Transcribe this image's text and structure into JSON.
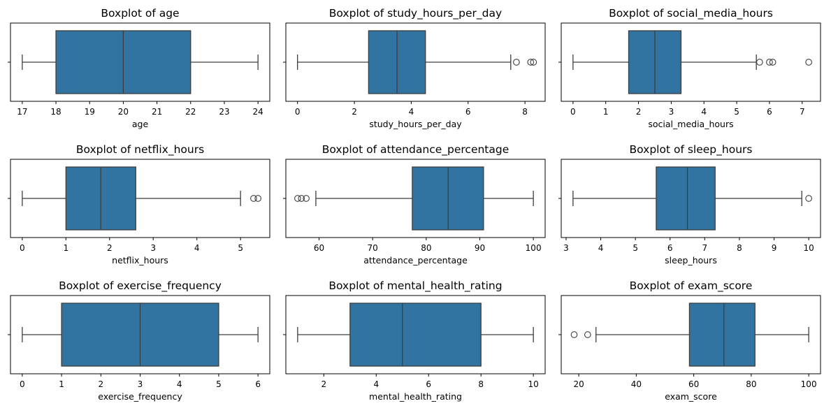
{
  "chart_data": [
    {
      "type": "boxplot",
      "title": "Boxplot of age",
      "xlabel": "age",
      "xlim": [
        16.65,
        24.35
      ],
      "xticks": [
        17,
        18,
        19,
        20,
        21,
        22,
        23,
        24
      ],
      "box": {
        "whisker_low": 17,
        "q1": 18,
        "median": 20,
        "q3": 22,
        "whisker_high": 24
      },
      "outliers": []
    },
    {
      "type": "boxplot",
      "title": "Boxplot of study_hours_per_day",
      "xlabel": "study_hours_per_day",
      "xlim": [
        -0.41,
        8.71
      ],
      "xticks": [
        0,
        2,
        4,
        6,
        8
      ],
      "box": {
        "whisker_low": 0,
        "q1": 2.5,
        "median": 3.5,
        "q3": 4.5,
        "whisker_high": 7.5
      },
      "outliers": [
        7.7,
        8.2,
        8.3
      ]
    },
    {
      "type": "boxplot",
      "title": "Boxplot of social_media_hours",
      "xlabel": "social_media_hours",
      "xlim": [
        -0.36,
        7.56
      ],
      "xticks": [
        0,
        1,
        2,
        3,
        4,
        5,
        6,
        7
      ],
      "box": {
        "whisker_low": 0,
        "q1": 1.7,
        "median": 2.5,
        "q3": 3.3,
        "whisker_high": 5.6
      },
      "outliers": [
        5.7,
        6.0,
        6.1,
        7.2
      ]
    },
    {
      "type": "boxplot",
      "title": "Boxplot of netflix_hours",
      "xlabel": "netflix_hours",
      "xlim": [
        -0.27,
        5.67
      ],
      "xticks": [
        0,
        1,
        2,
        3,
        4,
        5
      ],
      "box": {
        "whisker_low": 0,
        "q1": 1.0,
        "median": 1.8,
        "q3": 2.6,
        "whisker_high": 5.0
      },
      "outliers": [
        5.3,
        5.4
      ]
    },
    {
      "type": "boxplot",
      "title": "Boxplot of attendance_percentage",
      "xlabel": "attendance_percentage",
      "xlim": [
        53.8,
        102.2
      ],
      "xticks": [
        60,
        70,
        80,
        90,
        100
      ],
      "box": {
        "whisker_low": 59.4,
        "q1": 77.4,
        "median": 84.1,
        "q3": 90.7,
        "whisker_high": 100
      },
      "outliers": [
        56,
        56.7,
        57.6
      ]
    },
    {
      "type": "boxplot",
      "title": "Boxplot of sleep_hours",
      "xlabel": "sleep_hours",
      "xlim": [
        2.86,
        10.34
      ],
      "xticks": [
        3,
        4,
        5,
        6,
        7,
        8,
        9,
        10
      ],
      "box": {
        "whisker_low": 3.2,
        "q1": 5.6,
        "median": 6.5,
        "q3": 7.3,
        "whisker_high": 9.8
      },
      "outliers": [
        10.0
      ]
    },
    {
      "type": "boxplot",
      "title": "Boxplot of exercise_frequency",
      "xlabel": "exercise_frequency",
      "xlim": [
        -0.3,
        6.3
      ],
      "xticks": [
        0,
        1,
        2,
        3,
        4,
        5,
        6
      ],
      "box": {
        "whisker_low": 0,
        "q1": 1,
        "median": 3,
        "q3": 5,
        "whisker_high": 6
      },
      "outliers": []
    },
    {
      "type": "boxplot",
      "title": "Boxplot of mental_health_rating",
      "xlabel": "mental_health_rating",
      "xlim": [
        0.55,
        10.45
      ],
      "xticks": [
        2,
        4,
        6,
        8,
        10
      ],
      "box": {
        "whisker_low": 1,
        "q1": 3,
        "median": 5,
        "q3": 8,
        "whisker_high": 10
      },
      "outliers": []
    },
    {
      "type": "boxplot",
      "title": "Boxplot of exam_score",
      "xlabel": "exam_score",
      "xlim": [
        13.9,
        104.1
      ],
      "xticks": [
        20,
        40,
        60,
        80,
        100
      ],
      "box": {
        "whisker_low": 26,
        "q1": 58.5,
        "median": 70.5,
        "q3": 81.3,
        "whisker_high": 100
      },
      "outliers": [
        18.4,
        23.1
      ]
    }
  ],
  "colors": {
    "box_fill": "#3274a1",
    "line": "#3d3d3d",
    "axis": "#000000",
    "outlier_edge": "#3d3d3d"
  }
}
